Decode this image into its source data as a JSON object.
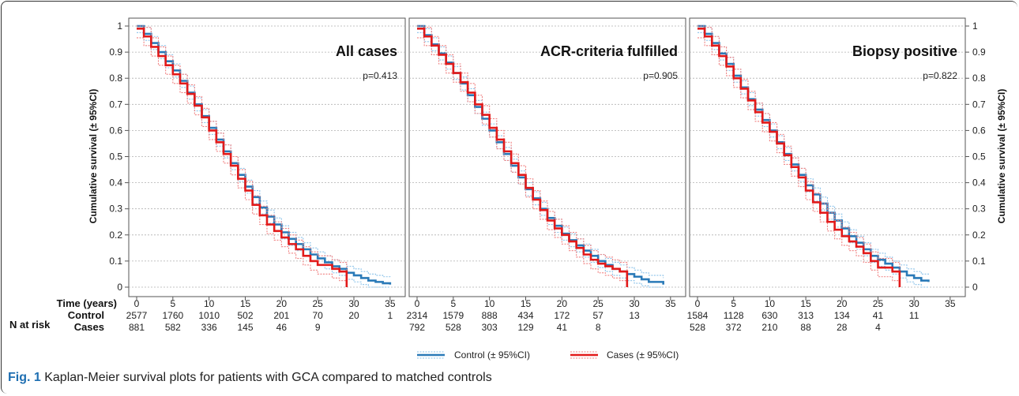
{
  "caption": {
    "label": "Fig. 1",
    "text": "Kaplan-Meier survival plots for patients with GCA compared to matched controls"
  },
  "colors": {
    "control": "#2a7ab8",
    "control_ci": "#8cc3ea",
    "cases": "#e21a1a",
    "cases_ci": "#f08080",
    "grid": "#b0b0b0"
  },
  "axis_text": {
    "ylabel": "Cumulative survival (± 95%CI)",
    "time_label": "Time (years)",
    "n_at_risk_label": "N at risk",
    "control_label": "Control",
    "cases_label": "Cases"
  },
  "legend": {
    "control": "Control (± 95%CI)",
    "cases": "Cases (± 95%CI)"
  },
  "chart_data": [
    {
      "type": "line",
      "title": "All cases",
      "pvalue": "p=0.413",
      "xlabel": "Time (years)",
      "ylabel": "Cumulative survival (± 95%CI)",
      "xlim": [
        0,
        36
      ],
      "ylim": [
        0,
        1
      ],
      "xticks": [
        0,
        5,
        10,
        15,
        20,
        25,
        30,
        35
      ],
      "yticks": [
        0,
        0.1,
        0.2,
        0.3,
        0.4,
        0.5,
        0.6,
        0.7,
        0.8,
        0.9,
        1
      ],
      "grid": true,
      "n_at_risk": {
        "Control": [
          "2577",
          "1760",
          "1010",
          "502",
          "201",
          "70",
          "20",
          "1"
        ],
        "Cases": [
          "881",
          "582",
          "336",
          "145",
          "46",
          "9",
          "",
          ""
        ]
      },
      "series": [
        {
          "name": "Control",
          "x": [
            0,
            1,
            2,
            3,
            4,
            5,
            6,
            7,
            8,
            9,
            10,
            11,
            12,
            13,
            14,
            15,
            16,
            17,
            18,
            19,
            20,
            21,
            22,
            23,
            24,
            25,
            26,
            27,
            28,
            29,
            30,
            31,
            32,
            33,
            34,
            35
          ],
          "y": [
            1,
            0.97,
            0.935,
            0.9,
            0.865,
            0.83,
            0.79,
            0.745,
            0.7,
            0.655,
            0.61,
            0.565,
            0.52,
            0.475,
            0.43,
            0.385,
            0.345,
            0.305,
            0.27,
            0.24,
            0.21,
            0.185,
            0.165,
            0.145,
            0.125,
            0.11,
            0.095,
            0.08,
            0.07,
            0.055,
            0.045,
            0.035,
            0.025,
            0.02,
            0.015,
            0.01
          ]
        },
        {
          "name": "Cases",
          "x": [
            0,
            1,
            2,
            3,
            4,
            5,
            6,
            7,
            8,
            9,
            10,
            11,
            12,
            13,
            14,
            15,
            16,
            17,
            18,
            19,
            20,
            21,
            22,
            23,
            24,
            25,
            26,
            27,
            28,
            29
          ],
          "y": [
            0.99,
            0.96,
            0.92,
            0.885,
            0.85,
            0.815,
            0.78,
            0.74,
            0.695,
            0.65,
            0.6,
            0.555,
            0.51,
            0.465,
            0.415,
            0.37,
            0.315,
            0.275,
            0.24,
            0.215,
            0.19,
            0.165,
            0.145,
            0.12,
            0.1,
            0.085,
            0.085,
            0.07,
            0.06,
            0
          ]
        }
      ]
    },
    {
      "type": "line",
      "title": "ACR-criteria fulfilled",
      "pvalue": "p=0.905",
      "xlabel": "Time (years)",
      "ylim": [
        0,
        1
      ],
      "xlim": [
        0,
        36
      ],
      "xticks": [
        0,
        5,
        10,
        15,
        20,
        25,
        30,
        35
      ],
      "yticks": [
        0,
        0.1,
        0.2,
        0.3,
        0.4,
        0.5,
        0.6,
        0.7,
        0.8,
        0.9,
        1
      ],
      "grid": true,
      "n_at_risk": {
        "Control": [
          "2314",
          "1579",
          "888",
          "434",
          "172",
          "57",
          "13",
          ""
        ],
        "Cases": [
          "792",
          "528",
          "303",
          "129",
          "41",
          "8",
          "",
          ""
        ]
      },
      "series": [
        {
          "name": "Control",
          "x": [
            0,
            1,
            2,
            3,
            4,
            5,
            6,
            7,
            8,
            9,
            10,
            11,
            12,
            13,
            14,
            15,
            16,
            17,
            18,
            19,
            20,
            21,
            22,
            23,
            24,
            25,
            26,
            27,
            28,
            29,
            30,
            31,
            32,
            33,
            34
          ],
          "y": [
            1,
            0.965,
            0.93,
            0.895,
            0.86,
            0.82,
            0.78,
            0.735,
            0.69,
            0.645,
            0.6,
            0.555,
            0.51,
            0.465,
            0.42,
            0.375,
            0.34,
            0.3,
            0.265,
            0.235,
            0.205,
            0.18,
            0.16,
            0.14,
            0.12,
            0.1,
            0.085,
            0.07,
            0.06,
            0.05,
            0.04,
            0.03,
            0.02,
            0.02,
            0.01
          ]
        },
        {
          "name": "Cases",
          "x": [
            0,
            1,
            2,
            3,
            4,
            5,
            6,
            7,
            8,
            9,
            10,
            11,
            12,
            13,
            14,
            15,
            16,
            17,
            18,
            19,
            20,
            21,
            22,
            23,
            24,
            25,
            26,
            27,
            28,
            29
          ],
          "y": [
            0.99,
            0.96,
            0.925,
            0.89,
            0.855,
            0.82,
            0.785,
            0.745,
            0.7,
            0.66,
            0.61,
            0.565,
            0.52,
            0.475,
            0.43,
            0.38,
            0.335,
            0.295,
            0.255,
            0.225,
            0.2,
            0.175,
            0.15,
            0.125,
            0.105,
            0.09,
            0.08,
            0.07,
            0.06,
            0
          ]
        }
      ]
    },
    {
      "type": "line",
      "title": "Biopsy positive",
      "pvalue": "p=0.822",
      "xlabel": "Time (years)",
      "ylabel": "Cumulative survival (± 95%CI)",
      "ylim": [
        0,
        1
      ],
      "xlim": [
        0,
        36
      ],
      "xticks": [
        0,
        5,
        10,
        15,
        20,
        25,
        30,
        35
      ],
      "yticks": [
        0,
        0.1,
        0.2,
        0.3,
        0.4,
        0.5,
        0.6,
        0.7,
        0.8,
        0.9,
        1
      ],
      "grid": true,
      "n_at_risk": {
        "Control": [
          "1584",
          "1128",
          "630",
          "313",
          "134",
          "41",
          "11",
          ""
        ],
        "Cases": [
          "528",
          "372",
          "210",
          "88",
          "28",
          "4",
          "",
          ""
        ]
      },
      "series": [
        {
          "name": "Control",
          "x": [
            0,
            1,
            2,
            3,
            4,
            5,
            6,
            7,
            8,
            9,
            10,
            11,
            12,
            13,
            14,
            15,
            16,
            17,
            18,
            19,
            20,
            21,
            22,
            23,
            24,
            25,
            26,
            27,
            28,
            29,
            30,
            31,
            32
          ],
          "y": [
            1,
            0.97,
            0.935,
            0.895,
            0.855,
            0.81,
            0.765,
            0.72,
            0.68,
            0.64,
            0.6,
            0.555,
            0.51,
            0.47,
            0.43,
            0.39,
            0.355,
            0.32,
            0.285,
            0.255,
            0.225,
            0.195,
            0.17,
            0.145,
            0.12,
            0.105,
            0.09,
            0.075,
            0.06,
            0.045,
            0.035,
            0.025,
            0.02
          ]
        },
        {
          "name": "Cases",
          "x": [
            0,
            1,
            2,
            3,
            4,
            5,
            6,
            7,
            8,
            9,
            10,
            11,
            12,
            13,
            14,
            15,
            16,
            17,
            18,
            19,
            20,
            21,
            22,
            23,
            24,
            25,
            26,
            27,
            28
          ],
          "y": [
            0.99,
            0.96,
            0.925,
            0.885,
            0.845,
            0.8,
            0.76,
            0.715,
            0.67,
            0.63,
            0.595,
            0.55,
            0.505,
            0.46,
            0.42,
            0.37,
            0.325,
            0.285,
            0.25,
            0.22,
            0.195,
            0.175,
            0.155,
            0.13,
            0.1,
            0.075,
            0.075,
            0.06,
            0
          ]
        }
      ]
    }
  ]
}
